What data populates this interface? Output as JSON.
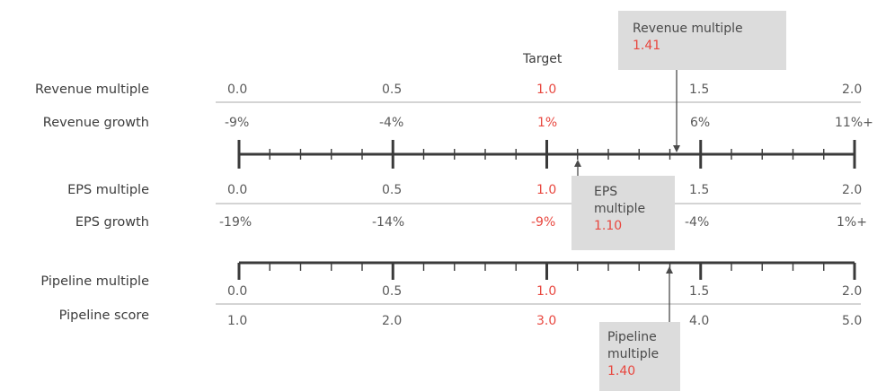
{
  "target_label": "Target",
  "colors": {
    "accent": "#e8473f",
    "text": "#3c3c3c",
    "muted_text": "#5a5a5a",
    "axis": "#3a3a3a",
    "callout_bg": "#dcdcdc",
    "separator": "#a8a8a8"
  },
  "rows": {
    "revenue_multiple": {
      "label": "Revenue multiple",
      "values": [
        "0.0",
        "0.5",
        "1.0",
        "1.5",
        "2.0"
      ]
    },
    "revenue_growth": {
      "label": "Revenue growth",
      "values": [
        "-9%",
        "-4%",
        "1%",
        "6%",
        "11%+"
      ]
    },
    "eps_multiple": {
      "label": "EPS multiple",
      "values": [
        "0.0",
        "0.5",
        "1.0",
        "1.5",
        "2.0"
      ]
    },
    "eps_growth": {
      "label": "EPS growth",
      "values": [
        "-19%",
        "-14%",
        "-9%",
        "-4%",
        "1%+"
      ]
    },
    "pipeline_multiple": {
      "label": "Pipeline multiple",
      "values": [
        "0.0",
        "0.5",
        "1.0",
        "1.5",
        "2.0"
      ]
    },
    "pipeline_score": {
      "label": "Pipeline score",
      "values": [
        "1.0",
        "2.0",
        "3.0",
        "4.0",
        "5.0"
      ]
    }
  },
  "target_index": 2,
  "scale": {
    "min": 0.0,
    "max": 2.0,
    "major_step": 0.5,
    "minor_per_major": 5
  },
  "callouts": {
    "revenue": {
      "name": "Revenue multiple",
      "value": "1.41",
      "value_num": 1.41
    },
    "eps": {
      "name_line1": "EPS",
      "name_line2": "multiple",
      "value": "1.10",
      "value_num": 1.1
    },
    "pipeline": {
      "name_line1": "Pipeline",
      "name_line2": "multiple",
      "value": "1.40",
      "value_num": 1.4
    }
  }
}
